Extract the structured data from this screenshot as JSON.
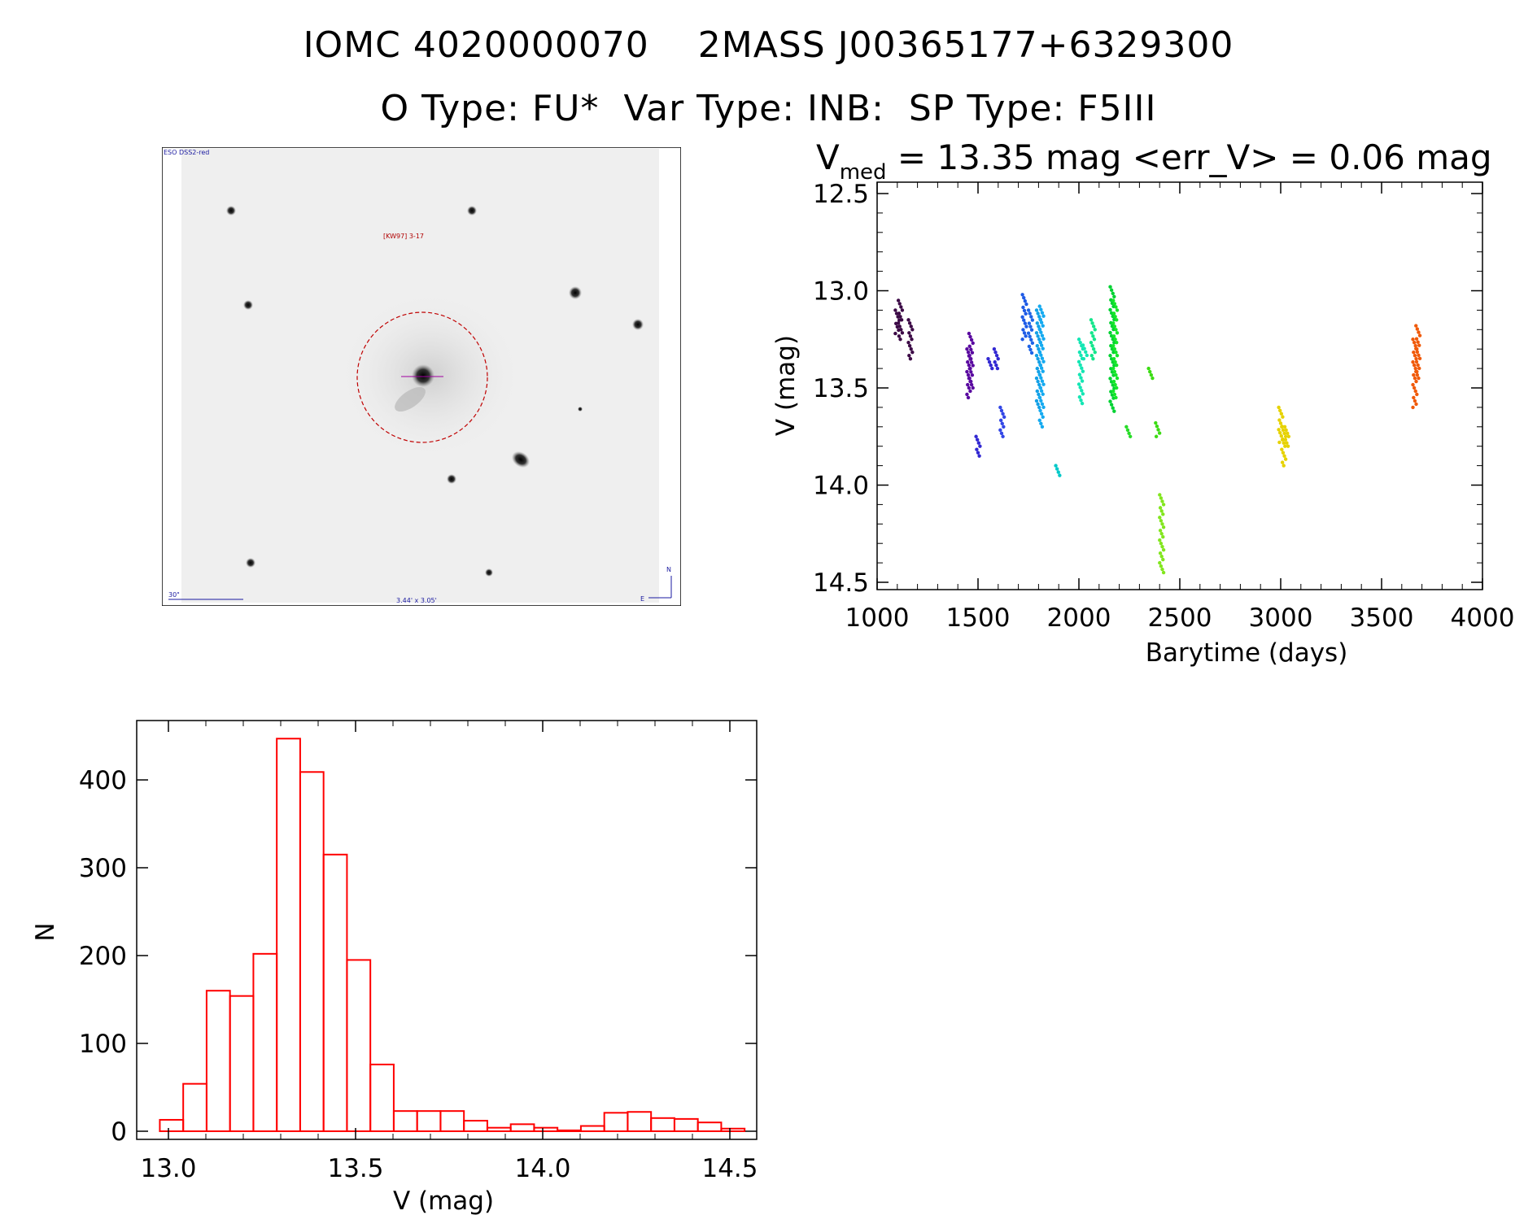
{
  "header": {
    "line1": "IOMC 4020000070    2MASS J00365177+6329300",
    "line2": "O Type: FU*  Var Type: INB:  SP Type: F5III"
  },
  "finder_chart": {
    "survey_label": "ESO DSS2-red",
    "object_label": "[KW97] 3-17",
    "scale_label": "30\"",
    "fov_label": "3.44' x 3.05'",
    "north_label": "N",
    "east_label": "E"
  },
  "colors": {
    "histogram": "#ff0000",
    "axis": "#000000",
    "circle": "#c00000"
  },
  "chart_data": [
    {
      "type": "scatter",
      "title_v": "V",
      "title_sub": "med",
      "title_rest": " = 13.35 mag <err_V> = 0.06 mag",
      "xlabel": "Barytime (days)",
      "ylabel": "V (mag)",
      "xlim": [
        1000,
        4000
      ],
      "ylim": [
        14.5,
        12.5
      ],
      "xticks": [
        1000,
        1500,
        2000,
        2500,
        3000,
        3500,
        4000
      ],
      "xtick_labels": [
        "1000",
        "1500",
        "2000",
        "2500",
        "3000",
        "3500",
        "4000"
      ],
      "yticks": [
        12.5,
        13.0,
        13.5,
        14.0,
        14.5
      ],
      "ytick_labels": [
        "12.5",
        "13.0",
        "13.5",
        "14.0",
        "14.5"
      ],
      "clusters": [
        {
          "x": 1100,
          "ymin": 13.1,
          "ymax": 13.22,
          "color": "#3c0a46"
        },
        {
          "x": 1115,
          "ymin": 13.05,
          "ymax": 13.25,
          "color": "#3c0a46"
        },
        {
          "x": 1165,
          "ymin": 13.15,
          "ymax": 13.35,
          "color": "#3c0a46"
        },
        {
          "x": 1455,
          "ymin": 13.3,
          "ymax": 13.55,
          "color": "#5a0aa0"
        },
        {
          "x": 1465,
          "ymin": 13.22,
          "ymax": 13.5,
          "color": "#5a0aa0"
        },
        {
          "x": 1500,
          "ymin": 13.75,
          "ymax": 13.85,
          "color": "#3228d2"
        },
        {
          "x": 1560,
          "ymin": 13.35,
          "ymax": 13.4,
          "color": "#3228d2"
        },
        {
          "x": 1590,
          "ymin": 13.3,
          "ymax": 13.4,
          "color": "#3228d2"
        },
        {
          "x": 1620,
          "ymin": 13.6,
          "ymax": 13.75,
          "color": "#3246e6"
        },
        {
          "x": 1730,
          "ymin": 13.02,
          "ymax": 13.25,
          "color": "#1e5ae6"
        },
        {
          "x": 1760,
          "ymin": 13.1,
          "ymax": 13.32,
          "color": "#1e64e6"
        },
        {
          "x": 1800,
          "ymin": 13.1,
          "ymax": 13.6,
          "color": "#14a0e6"
        },
        {
          "x": 1815,
          "ymin": 13.08,
          "ymax": 13.7,
          "color": "#14aaf0"
        },
        {
          "x": 1895,
          "ymin": 13.9,
          "ymax": 13.95,
          "color": "#00c8c8"
        },
        {
          "x": 2010,
          "ymin": 13.25,
          "ymax": 13.58,
          "color": "#14e6b4"
        },
        {
          "x": 2030,
          "ymin": 13.28,
          "ymax": 13.35,
          "color": "#14e6b4"
        },
        {
          "x": 2070,
          "ymin": 13.15,
          "ymax": 13.35,
          "color": "#14e68c"
        },
        {
          "x": 2165,
          "ymin": 12.98,
          "ymax": 13.62,
          "color": "#00d232"
        },
        {
          "x": 2180,
          "ymin": 13.05,
          "ymax": 13.55,
          "color": "#14e628"
        },
        {
          "x": 2245,
          "ymin": 13.7,
          "ymax": 13.75,
          "color": "#28dc28"
        },
        {
          "x": 2355,
          "ymin": 13.4,
          "ymax": 13.45,
          "color": "#3cdc14"
        },
        {
          "x": 2390,
          "ymin": 13.68,
          "ymax": 13.75,
          "color": "#3cdc14"
        },
        {
          "x": 2410,
          "ymin": 14.05,
          "ymax": 14.45,
          "color": "#82e61e"
        },
        {
          "x": 3000,
          "ymin": 13.6,
          "ymax": 13.78,
          "color": "#e6d200"
        },
        {
          "x": 3015,
          "ymin": 13.7,
          "ymax": 13.9,
          "color": "#e6d200"
        },
        {
          "x": 3030,
          "ymin": 13.7,
          "ymax": 13.8,
          "color": "#e6d200"
        },
        {
          "x": 3665,
          "ymin": 13.25,
          "ymax": 13.6,
          "color": "#f05a0a"
        },
        {
          "x": 3680,
          "ymin": 13.18,
          "ymax": 13.45,
          "color": "#f05a0a"
        }
      ]
    },
    {
      "type": "bar",
      "xlabel": "V (mag)",
      "ylabel": "N",
      "xlim": [
        12.95,
        14.52
      ],
      "ylim": [
        0,
        470
      ],
      "xticks": [
        13.0,
        13.5,
        14.0,
        14.5
      ],
      "xtick_labels": [
        "13.0",
        "13.5",
        "14.0",
        "14.5"
      ],
      "yticks": [
        0,
        100,
        200,
        300,
        400
      ],
      "ytick_labels": [
        "0",
        "100",
        "200",
        "300",
        "400"
      ],
      "bin_start": 12.977,
      "bin_width": 0.0625,
      "values": [
        13,
        54,
        160,
        154,
        202,
        447,
        409,
        315,
        195,
        76,
        23,
        23,
        23,
        12,
        4,
        8,
        4,
        1,
        6,
        21,
        22,
        15,
        14,
        10,
        3
      ]
    }
  ]
}
